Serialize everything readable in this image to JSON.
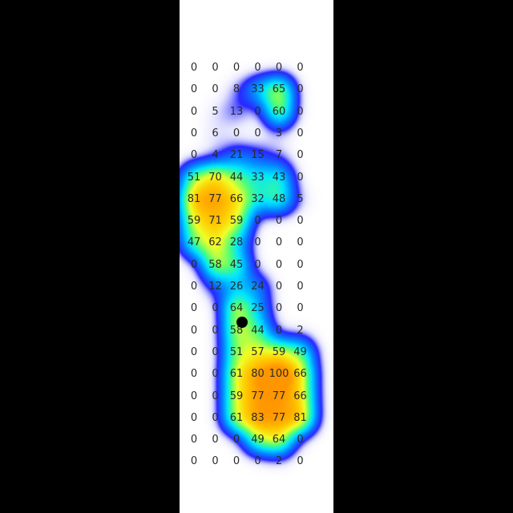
{
  "chart_data": {
    "type": "heatmap",
    "title": "",
    "xlabel": "",
    "ylabel": "",
    "rows": 19,
    "cols": 6,
    "grid": false,
    "colorscale": [
      "#2020ff",
      "#00e0ff",
      "#40ff80",
      "#ffff00",
      "#ff9900"
    ],
    "marker_color": "#000000",
    "values": [
      [
        0,
        0,
        0,
        0,
        0,
        0
      ],
      [
        0,
        0,
        8,
        33,
        65,
        0
      ],
      [
        0,
        5,
        13,
        0,
        60,
        0
      ],
      [
        0,
        6,
        0,
        0,
        3,
        0
      ],
      [
        0,
        4,
        21,
        15,
        7,
        0
      ],
      [
        51,
        70,
        44,
        33,
        43,
        0
      ],
      [
        81,
        77,
        66,
        32,
        48,
        5
      ],
      [
        59,
        71,
        59,
        0,
        0,
        0
      ],
      [
        47,
        62,
        28,
        0,
        0,
        0
      ],
      [
        0,
        58,
        45,
        0,
        0,
        0
      ],
      [
        0,
        12,
        26,
        24,
        0,
        0
      ],
      [
        0,
        0,
        64,
        25,
        0,
        0
      ],
      [
        0,
        0,
        58,
        44,
        0,
        2
      ],
      [
        0,
        0,
        51,
        57,
        59,
        49
      ],
      [
        0,
        0,
        61,
        80,
        100,
        66
      ],
      [
        0,
        0,
        59,
        77,
        77,
        66
      ],
      [
        0,
        0,
        61,
        83,
        77,
        81
      ],
      [
        0,
        0,
        0,
        49,
        64,
        0
      ],
      [
        0,
        0,
        0,
        0,
        2,
        0
      ]
    ],
    "marker": {
      "row": 11.6,
      "col": 2.25
    }
  }
}
